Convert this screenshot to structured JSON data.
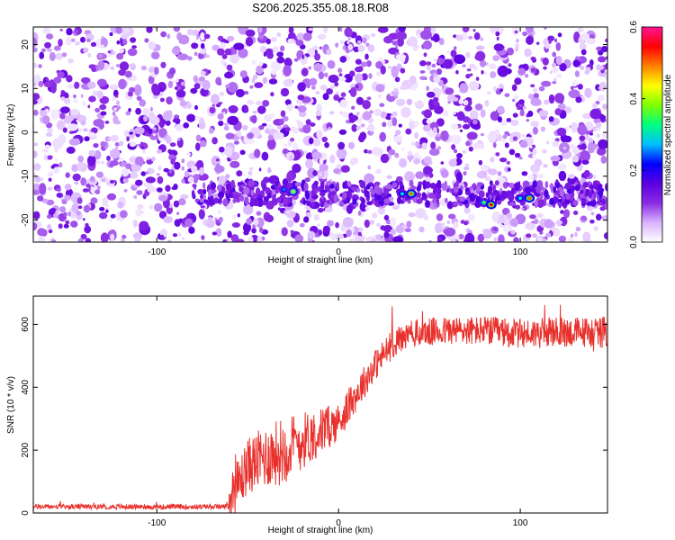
{
  "chart_data": [
    {
      "type": "heatmap",
      "title": "S206.2025.355.08.18.R08",
      "xlabel": "Height of straight line (km)",
      "ylabel": "Frequency (Hz)",
      "xlim": [
        -168,
        148
      ],
      "ylim": [
        -25,
        24
      ],
      "x_ticks": [
        -100,
        0,
        100
      ],
      "y_ticks": [
        -20,
        -10,
        0,
        10,
        20
      ],
      "colorbar": {
        "label": "Normalized spectral amplitude",
        "range": [
          0,
          0.6
        ],
        "ticks": [
          "0.0",
          "0.2",
          "0.4",
          "0.6"
        ],
        "colors": [
          "#ffffff",
          "#d9b3ff",
          "#8a2be2",
          "#5b00e0",
          "#0000ff",
          "#00bfff",
          "#00ff80",
          "#7fff00",
          "#ffff00",
          "#ff8000",
          "#ff0000",
          "#ff1493"
        ]
      },
      "band": {
        "frequency_center": -14,
        "x_start": -80
      },
      "peaks": [
        {
          "x": -25,
          "y": -13.5,
          "value": 0.4
        },
        {
          "x": -30,
          "y": -13,
          "value": 0.25
        },
        {
          "x": 35,
          "y": -14,
          "value": 0.3
        },
        {
          "x": 40,
          "y": -14,
          "value": 0.5
        },
        {
          "x": 80,
          "y": -16,
          "value": 0.35
        },
        {
          "x": 84,
          "y": -16.5,
          "value": 0.55
        },
        {
          "x": 100,
          "y": -15,
          "value": 0.3
        },
        {
          "x": 105,
          "y": -15,
          "value": 0.5
        }
      ],
      "gaps_x": [
        20,
        42,
        83
      ]
    },
    {
      "type": "line",
      "xlabel": "Height of straight line (km)",
      "ylabel": "SNR (10 * v/v)",
      "xlim": [
        -168,
        148
      ],
      "ylim": [
        0,
        690
      ],
      "x_ticks": [
        -100,
        0,
        100
      ],
      "y_ticks": [
        0,
        200,
        400,
        600
      ],
      "color": "#e8312c",
      "trend": {
        "x": [
          -168,
          -100,
          -62,
          -58,
          -50,
          -40,
          -30,
          -20,
          -10,
          0,
          10,
          20,
          30,
          40,
          60,
          80,
          100,
          120,
          148
        ],
        "y": [
          20,
          20,
          20,
          60,
          150,
          180,
          200,
          230,
          260,
          290,
          380,
          470,
          540,
          570,
          580,
          580,
          570,
          575,
          575
        ]
      },
      "noise_amplitude": {
        "x": [
          -168,
          -62,
          -58,
          -30,
          0,
          20,
          40,
          148
        ],
        "y": [
          8,
          8,
          80,
          110,
          60,
          50,
          45,
          50
        ]
      }
    }
  ]
}
